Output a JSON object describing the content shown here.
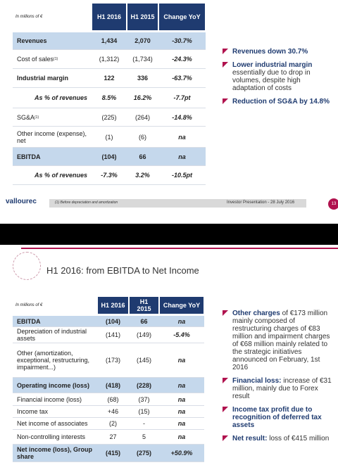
{
  "slide1": {
    "table": {
      "unit": "In millions of €",
      "headers": [
        "H1 2016",
        "H1 2015",
        "Change YoY"
      ],
      "rows": [
        {
          "label": "Revenues",
          "style": "highlight",
          "values": [
            "1,434",
            "2,070",
            "-30.7%"
          ]
        },
        {
          "label": "Cost of sales",
          "sup": "(1)",
          "values": [
            "(1,312)",
            "(1,734)",
            "-24.3%"
          ]
        },
        {
          "label": "Industrial margin",
          "style": "bold",
          "values": [
            "122",
            "336",
            "-63.7%"
          ]
        },
        {
          "label": "As % of revenues",
          "style": "italic",
          "values": [
            "8.5%",
            "16.2%",
            "-7.7pt"
          ]
        },
        {
          "label": "SG&A",
          "sup": "(1)",
          "values": [
            "(225)",
            "(264)",
            "-14.8%"
          ]
        },
        {
          "label": "Other income (expense), net",
          "values": [
            "(1)",
            "(6)",
            "na"
          ]
        },
        {
          "label": "EBITDA",
          "style": "highlight",
          "values": [
            "(104)",
            "66",
            "na"
          ]
        },
        {
          "label": "As % of revenues",
          "style": "italic",
          "values": [
            "-7.3%",
            "3.2%",
            "-10.5pt"
          ]
        }
      ]
    },
    "bullets": [
      {
        "bold": "Revenues down 30.7%"
      },
      {
        "bold": "Lower industrial margin",
        "text": "essentially due to drop in volumes, despite high adaptation of costs"
      },
      {
        "bold": "Reduction of SG&A by 14.8%"
      }
    ],
    "logo": "vallourec",
    "footnote": "(1) Before depreciation and amortization",
    "footer": "Investor Presentation - 28 July 2016",
    "page": "13"
  },
  "slide2": {
    "title": "H1 2016: from EBITDA to Net Income",
    "table": {
      "unit": "In millions of €",
      "headers": [
        "H1 2016",
        "H1 2015",
        "Change YoY"
      ],
      "rows": [
        {
          "label": "EBITDA",
          "style": "highlight",
          "values": [
            "(104)",
            "66",
            "na"
          ]
        },
        {
          "label": "Depreciation of industrial assets",
          "values": [
            "(141)",
            "(149)",
            "-5.4%"
          ]
        },
        {
          "label": "Other (amortization, exceptional, restructuring, impairment...)",
          "values": [
            "(173)",
            "(145)",
            "na"
          ]
        },
        {
          "label": "Operating income (loss)",
          "style": "highlight",
          "values": [
            "(418)",
            "(228)",
            "na"
          ]
        },
        {
          "label": "Financial income (loss)",
          "values": [
            "(68)",
            "(37)",
            "na"
          ]
        },
        {
          "label": "Income tax",
          "values": [
            "+46",
            "(15)",
            "na"
          ]
        },
        {
          "label": "Net income of associates",
          "values": [
            "(2)",
            "-",
            "na"
          ]
        },
        {
          "label": "Non-controlling interests",
          "values": [
            "27",
            "5",
            "na"
          ]
        },
        {
          "label": "Net income (loss), Group share",
          "style": "highlight",
          "values": [
            "(415)",
            "(275)",
            "+50.9%"
          ]
        }
      ]
    },
    "bullets": [
      {
        "bold": "Other charges",
        "text": "of €173 million mainly composed of restructuring charges of €83 million and impairment charges of €68 million mainly related to the strategic initiatives announced on February, 1st 2016"
      },
      {
        "bold": "Financial loss:",
        "text": "increase of €31 million, mainly due to Forex result"
      },
      {
        "bold": "Income tax profit due to recognition of deferred tax assets"
      },
      {
        "bold": "Net result:",
        "text": "loss of €415 million"
      }
    ]
  }
}
